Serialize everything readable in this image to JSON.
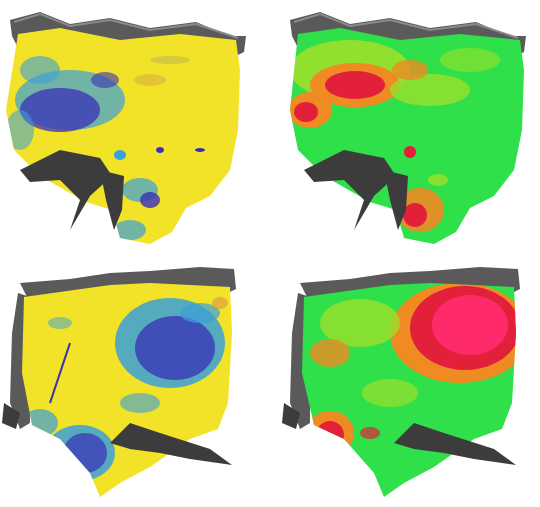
{
  "figure": {
    "panels": [
      {
        "id": "top-left",
        "view": "front-oblique",
        "colormap": "yellow-blue"
      },
      {
        "id": "top-right",
        "view": "front-oblique",
        "colormap": "red-green"
      },
      {
        "id": "bottom-left",
        "view": "rear-oblique",
        "colormap": "yellow-blue"
      },
      {
        "id": "bottom-right",
        "view": "rear-oblique",
        "colormap": "red-green"
      }
    ],
    "colors": {
      "background": "#ffffff",
      "rim": "#5a5a5a",
      "rim_light": "#8a8a8a",
      "roots": "#3c3c3c",
      "yellow": "#f2e228",
      "blue_light": "#3aa0d8",
      "blue_dark": "#3a2fb8",
      "green": "#2fe04a",
      "green_yellow": "#9be02a",
      "orange": "#f08a22",
      "red": "#e2203a",
      "magenta": "#ff2a6a"
    }
  }
}
